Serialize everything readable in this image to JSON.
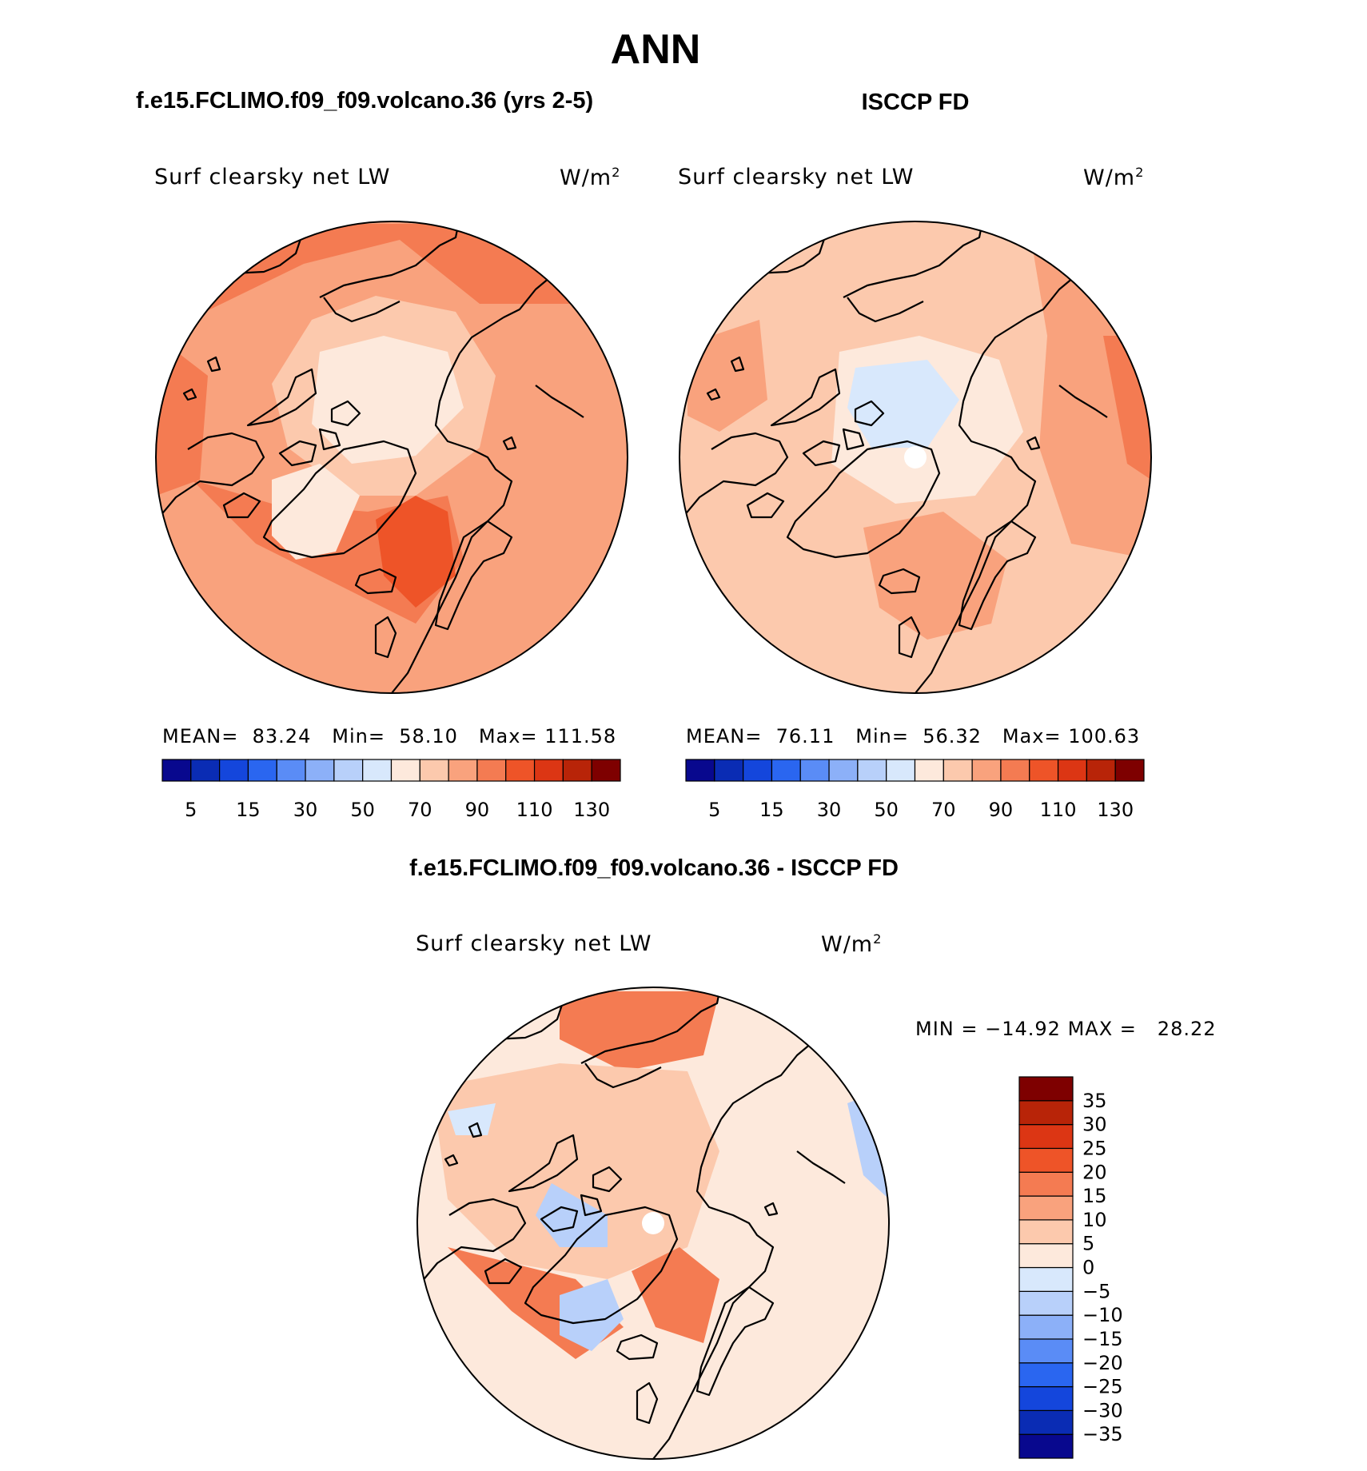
{
  "figure": {
    "title": "ANN",
    "bottom_title": "f.e15.FCLIMO.f09_f09.volcano.36 - ISCCP FD"
  },
  "panels": [
    {
      "header": "f.e15.FCLIMO.f09_f09.volcano.36 (yrs 2-5)",
      "variable": "Surf clearsky net LW",
      "units_base": "W/m",
      "units_exp": "2",
      "stats": {
        "mean_label": "MEAN=",
        "mean": "83.24",
        "min_label": "Min=",
        "min": "58.10",
        "max_label": "Max=",
        "max": "111.58"
      }
    },
    {
      "header": "ISCCP FD",
      "variable": "Surf clearsky net LW",
      "units_base": "W/m",
      "units_exp": "2",
      "stats": {
        "mean_label": "MEAN=",
        "mean": "76.11",
        "min_label": "Min=",
        "min": "56.32",
        "max_label": "Max=",
        "max": "100.63"
      }
    },
    {
      "variable": "Surf clearsky net LW",
      "units_base": "W/m",
      "units_exp": "2",
      "stats": {
        "min_label": "MIN =",
        "min": "−14.92",
        "max_label": "MAX =",
        "max": "28.22"
      }
    }
  ],
  "colorbar_abs": {
    "colors": [
      "#08088e",
      "#0a2cb4",
      "#1446dc",
      "#2a66f0",
      "#5a8cf6",
      "#8cb0f8",
      "#b8d0fa",
      "#d8e8fc",
      "#fde9dc",
      "#fcc9ad",
      "#f9a27d",
      "#f47b52",
      "#ee5428",
      "#dc3614",
      "#b82408",
      "#7e0000"
    ],
    "labels": [
      "5",
      "15",
      "30",
      "50",
      "70",
      "90",
      "110",
      "130"
    ]
  },
  "colorbar_diff": {
    "colors": [
      "#08088e",
      "#0a2cb4",
      "#1446dc",
      "#2a66f0",
      "#5a8cf6",
      "#8cb0f8",
      "#b8d0fa",
      "#d8e8fc",
      "#fde9dc",
      "#fcc9ad",
      "#f9a27d",
      "#f47b52",
      "#ee5428",
      "#dc3614",
      "#b82408",
      "#7e0000"
    ],
    "labels": [
      "35",
      "30",
      "25",
      "20",
      "15",
      "10",
      "5",
      "0",
      "−5",
      "−10",
      "−15",
      "−20",
      "−25",
      "−30",
      "−35"
    ]
  }
}
